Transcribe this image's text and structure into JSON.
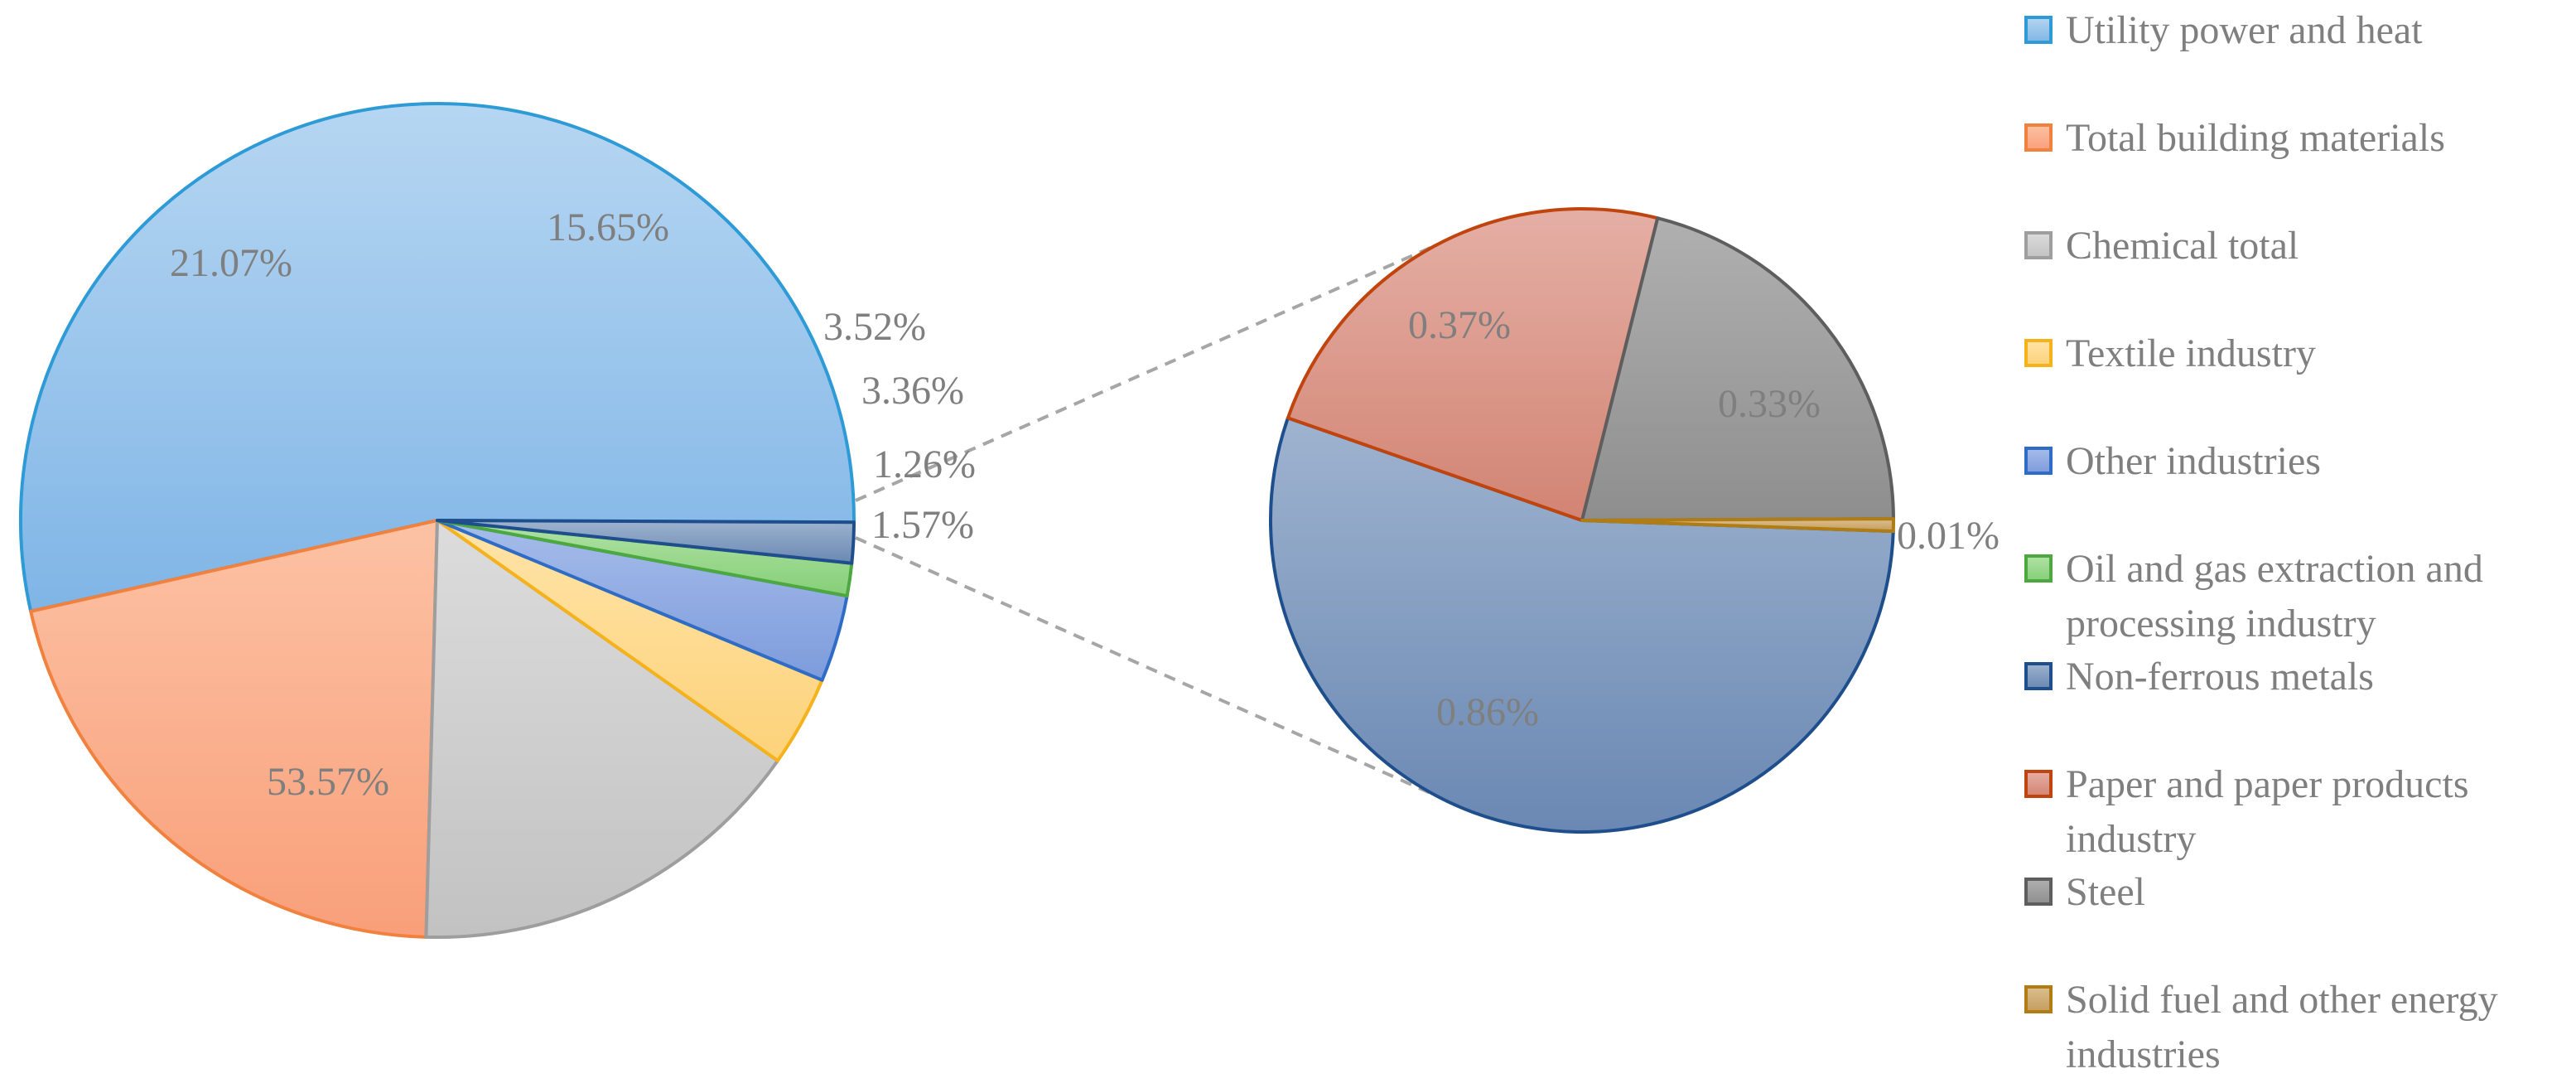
{
  "chart_data": {
    "type": "pie",
    "subtype": "pie-of-pie",
    "main_pie": [
      {
        "name": "Utility power and heat",
        "value": 53.57,
        "label": "53.57%"
      },
      {
        "name": "Total building materials",
        "value": 21.07,
        "label": "21.07%"
      },
      {
        "name": "Chemical total",
        "value": 15.65,
        "label": "15.65%"
      },
      {
        "name": "Textile industry",
        "value": 3.52,
        "label": "3.52%"
      },
      {
        "name": "Other industries",
        "value": 3.36,
        "label": "3.36%"
      },
      {
        "name": "Oil and gas extraction and processing industry",
        "value": 1.26,
        "label": "1.26%"
      },
      {
        "name": "Non-ferrous metals",
        "value": 1.57,
        "label": "1.57%"
      }
    ],
    "secondary_pie": [
      {
        "name": "Non-ferrous metals",
        "value": 0.86,
        "label": "0.86%"
      },
      {
        "name": "Paper and paper products industry",
        "value": 0.37,
        "label": "0.37%"
      },
      {
        "name": "Steel",
        "value": 0.33,
        "label": "0.33%"
      },
      {
        "name": "Solid fuel and other energy industries",
        "value": 0.01,
        "label": "0.01%"
      }
    ],
    "legend": {
      "placement": "right",
      "items": [
        {
          "label": "Utility power and heat",
          "color": "#9DC6EC",
          "stroke": "#2E9BD6"
        },
        {
          "label": "Total building materials",
          "color": "#FBB08F",
          "stroke": "#F0813F"
        },
        {
          "label": "Chemical total",
          "color": "#C9C9C9",
          "stroke": "#9E9E9E"
        },
        {
          "label": "Textile industry",
          "color": "#FDD98A",
          "stroke": "#F5B21B"
        },
        {
          "label": "Other industries",
          "color": "#8FA9E2",
          "stroke": "#2F6CC6"
        },
        {
          "label": "Oil and gas extraction and processing industry",
          "color": "#96D68A",
          "stroke": "#4DA840"
        },
        {
          "label": "Non-ferrous metals",
          "color": "#7E98BC",
          "stroke": "#1F4E8C"
        },
        {
          "label": "Paper and paper products industry",
          "color": "#DB9B8E",
          "stroke": "#C0440E"
        },
        {
          "label": "Steel",
          "color": "#9B9B9B",
          "stroke": "#5E5E5E"
        },
        {
          "label": "Solid fuel and other energy industries",
          "color": "#D1B07A",
          "stroke": "#B07D14"
        }
      ]
    }
  }
}
